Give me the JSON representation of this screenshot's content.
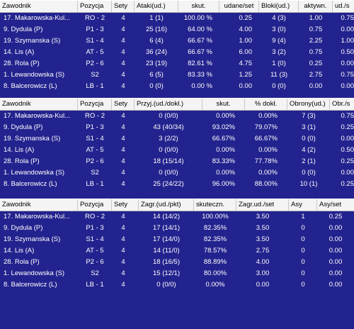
{
  "tables": [
    {
      "headers": [
        "Zawodnik",
        "Pozycja",
        "Sety",
        "Ataki(ud.)",
        "skut.",
        "udane/set",
        "Bloki(ud.)",
        "aktywn.",
        "ud./s"
      ],
      "rows": [
        [
          "17. Makarowska-Kul...",
          "RO - 2",
          "4",
          "1 (1)",
          "100.00 %",
          "0.25",
          "4 (3)",
          "1.00",
          "0.75"
        ],
        [
          "9. Dydula (P)",
          "P1 - 3",
          "4",
          "25 (16)",
          "64.00 %",
          "4.00",
          "3 (0)",
          "0.75",
          "0.00"
        ],
        [
          "19. Szymanska (S)",
          "S1 - 4",
          "4",
          "6 (4)",
          "66.67 %",
          "1.00",
          "9 (4)",
          "2.25",
          "1.00"
        ],
        [
          "14. Lis (A)",
          "AT - 5",
          "4",
          "36 (24)",
          "66.67 %",
          "6.00",
          "3 (2)",
          "0.75",
          "0.50"
        ],
        [
          "28. Rola (P)",
          "P2 - 6",
          "4",
          "23 (19)",
          "82.61 %",
          "4.75",
          "1 (0)",
          "0.25",
          "0.00"
        ],
        [
          "1. Lewandowska (S)",
          "S2",
          "4",
          "6 (5)",
          "83.33 %",
          "1.25",
          "11 (3)",
          "2.75",
          "0.75"
        ],
        [
          "8. Balcerowicz (L)",
          "LB - 1",
          "4",
          "0 (0)",
          "0.00 %",
          "0.00",
          "0 (0)",
          "0.00",
          "0.00"
        ]
      ]
    },
    {
      "headers": [
        "Zawodnik",
        "Pozycja",
        "Sety",
        "Przyj.(ud./dokł.)",
        "skut.",
        "% dokł.",
        "Obrony(ud.)",
        "Obr./s"
      ],
      "rows": [
        [
          "17. Makarowska-Kul...",
          "RO - 2",
          "4",
          "0 (0/0)",
          "0.00%",
          "0.00%",
          "7 (3)",
          "0.75"
        ],
        [
          "9. Dydula (P)",
          "P1 - 3",
          "4",
          "43 (40/34)",
          "93.02%",
          "79.07%",
          "3 (1)",
          "0.25"
        ],
        [
          "19. Szymanska (S)",
          "S1 - 4",
          "4",
          "3 (2/2)",
          "66.67%",
          "66.67%",
          "0 (0)",
          "0.00"
        ],
        [
          "14. Lis (A)",
          "AT - 5",
          "4",
          "0 (0/0)",
          "0.00%",
          "0.00%",
          "4 (2)",
          "0.50"
        ],
        [
          "28. Rola (P)",
          "P2 - 6",
          "4",
          "18 (15/14)",
          "83.33%",
          "77.78%",
          "2 (1)",
          "0.25"
        ],
        [
          "1. Lewandowska (S)",
          "S2",
          "4",
          "0 (0/0)",
          "0.00%",
          "0.00%",
          "0 (0)",
          "0.00"
        ],
        [
          "8. Balcerowicz (L)",
          "LB - 1",
          "4",
          "25 (24/22)",
          "96.00%",
          "88.00%",
          "10 (1)",
          "0.25"
        ]
      ]
    },
    {
      "headers": [
        "Zawodnik",
        "Pozycja",
        "Sety",
        "Zagr.(ud./pkt)",
        "skuteczn.",
        "Zagr.ud./set",
        "Asy",
        "Asy/set"
      ],
      "rows": [
        [
          "17. Makarowska-Kul...",
          "RO - 2",
          "4",
          "14 (14/2)",
          "100.00%",
          "3.50",
          "1",
          "0.25"
        ],
        [
          "9. Dydula (P)",
          "P1 - 3",
          "4",
          "17 (14/1)",
          "82.35%",
          "3.50",
          "0",
          "0.00"
        ],
        [
          "19. Szymanska (S)",
          "S1 - 4",
          "4",
          "17 (14/0)",
          "82.35%",
          "3.50",
          "0",
          "0.00"
        ],
        [
          "14. Lis (A)",
          "AT - 5",
          "4",
          "14 (11/0)",
          "78.57%",
          "2.75",
          "0",
          "0.00"
        ],
        [
          "28. Rola (P)",
          "P2 - 6",
          "4",
          "18 (16/5)",
          "88.89%",
          "4.00",
          "0",
          "0.00"
        ],
        [
          "1. Lewandowska (S)",
          "S2",
          "4",
          "15 (12/1)",
          "80.00%",
          "3.00",
          "0",
          "0.00"
        ],
        [
          "8. Balcerowicz (L)",
          "LB - 1",
          "4",
          "0 (0/0)",
          "0.00%",
          "0.00",
          "0",
          "0.00"
        ]
      ]
    }
  ]
}
